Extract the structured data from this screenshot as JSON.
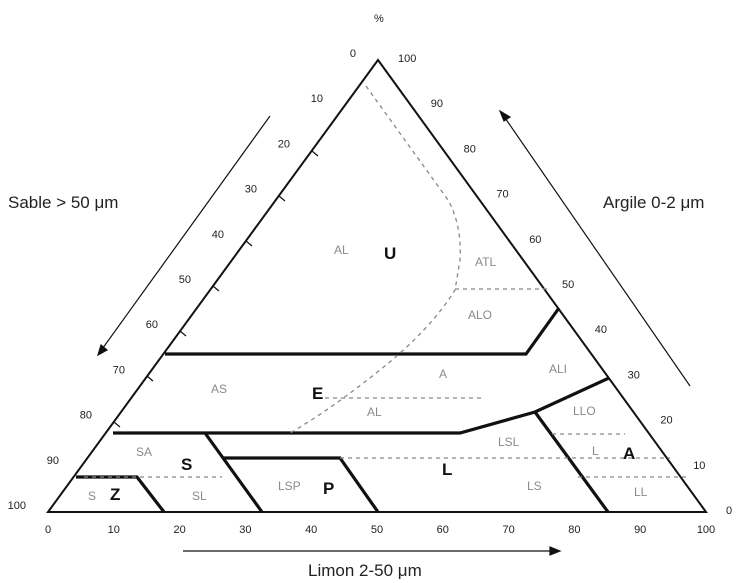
{
  "axes": {
    "sable": "Sable > 50 μm",
    "argile": "Argile 0-2 μm",
    "limon": "Limon 2-50 μm",
    "percent": "%"
  },
  "ticks": {
    "bottom": [
      "0",
      "10",
      "20",
      "30",
      "40",
      "50",
      "60",
      "70",
      "80",
      "90",
      "100"
    ],
    "left": [
      "0",
      "10",
      "20",
      "30",
      "40",
      "50",
      "60",
      "70",
      "80",
      "90",
      "100"
    ],
    "right": [
      "0",
      "10",
      "20",
      "30",
      "40",
      "50",
      "60",
      "70",
      "80",
      "90",
      "100"
    ]
  },
  "zones": {
    "al_top": "AL",
    "atl": "ATL",
    "alo": "ALO",
    "as": "AS",
    "a": "A",
    "al_mid": "AL",
    "ali": "ALI",
    "llo": "LLO",
    "sa": "SA",
    "lsl": "LSL",
    "l_small": "L",
    "ls": "LS",
    "ll": "LL",
    "s_small": "S",
    "sl": "SL",
    "lsp": "LSP"
  },
  "groups": {
    "u": "U",
    "e": "E",
    "s": "S",
    "l": "L",
    "a": "A",
    "p": "P",
    "z": "Z"
  }
}
